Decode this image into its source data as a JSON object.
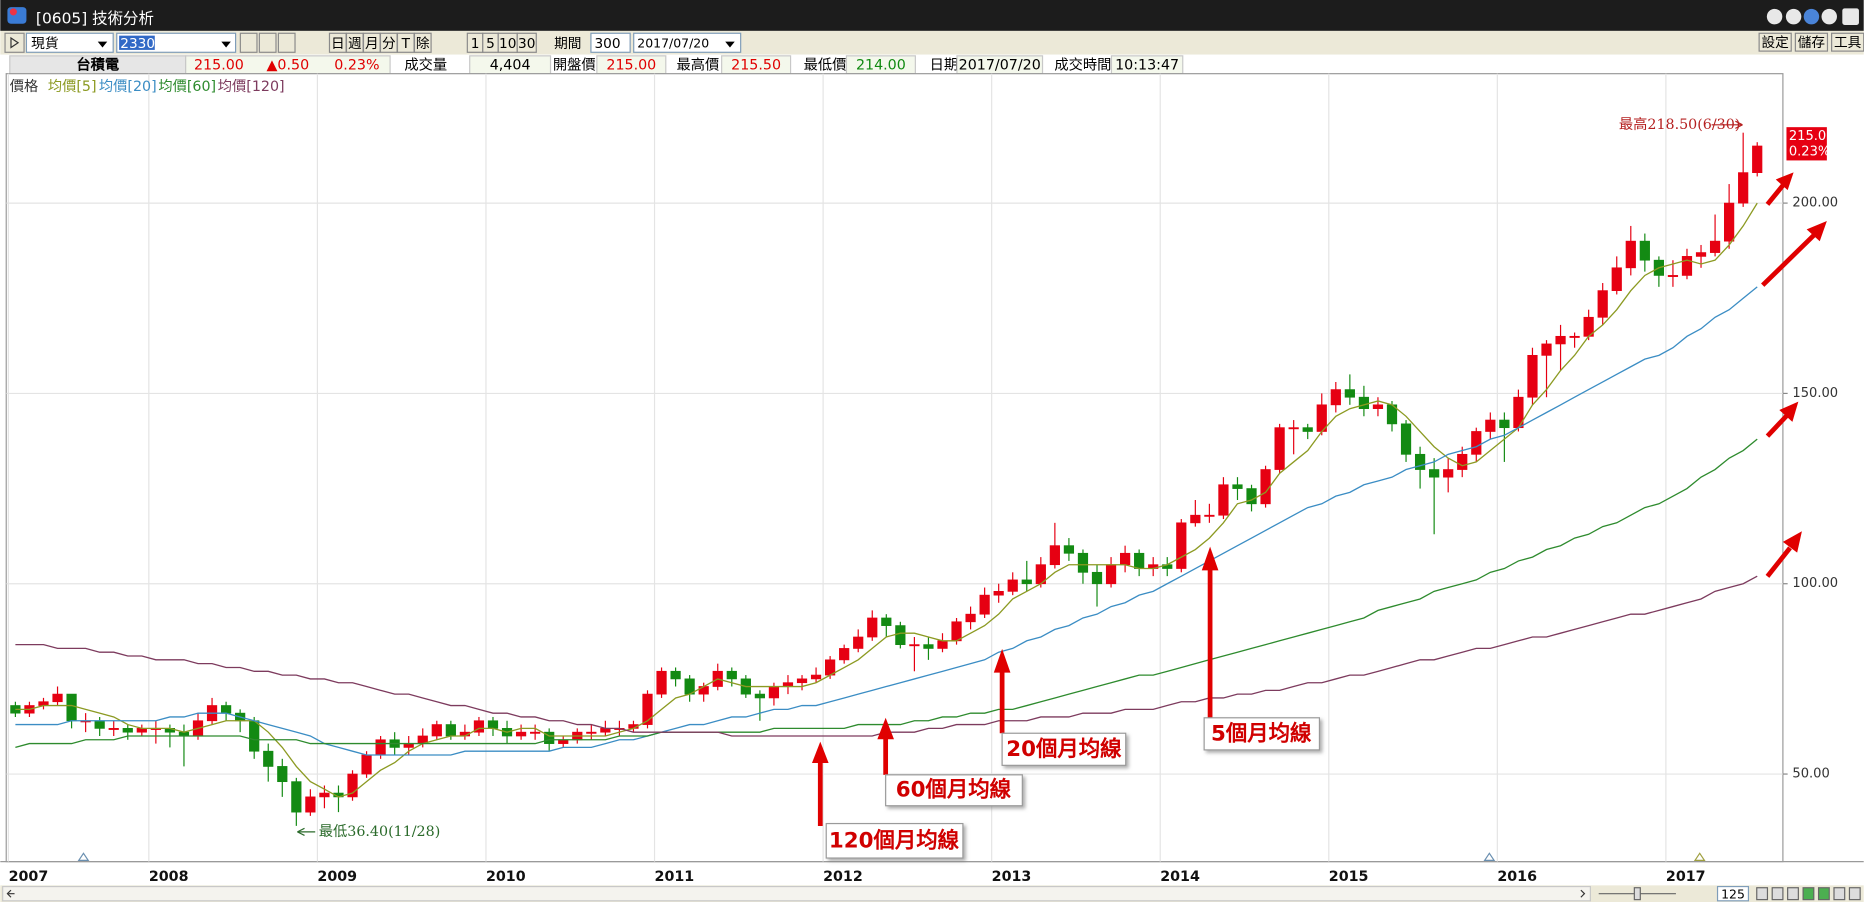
{
  "window": {
    "title": "[0605] 技術分析"
  },
  "toolbar": {
    "market": "現貨",
    "symbol": "2330",
    "periods": [
      "日",
      "週",
      "月",
      "分",
      "T",
      "除"
    ],
    "minutes": [
      "1",
      "5",
      "10",
      "30"
    ],
    "range_label": "期間",
    "range": "300",
    "date": "2017/07/20",
    "buttons": [
      "設定",
      "儲存",
      "工具"
    ]
  },
  "quote": {
    "name": "台積電",
    "price": "215.00",
    "change": "▲0.50",
    "change_pct": "0.23%",
    "fields": [
      {
        "label": "成交量",
        "value": "4,404"
      },
      {
        "label": "開盤價",
        "value": "215.00"
      },
      {
        "label": "最高價",
        "value": "215.50"
      },
      {
        "label": "最低價",
        "value": "214.00"
      },
      {
        "label": "日期",
        "value": "2017/07/20"
      },
      {
        "label": "成交時間",
        "value": "10:13:47"
      }
    ]
  },
  "chart_data": {
    "type": "candlestick",
    "price_label": "價格",
    "up_color": "#e60012",
    "down_color": "#138a13",
    "grid": true,
    "ylim": [
      27,
      234
    ],
    "yticks": [
      {
        "value": 50,
        "label": "50.00"
      },
      {
        "value": 100,
        "label": "100.00"
      },
      {
        "value": 150,
        "label": "150.00"
      },
      {
        "value": 200,
        "label": "200.00"
      }
    ],
    "categories": [
      "2007",
      null,
      null,
      null,
      null,
      null,
      null,
      null,
      null,
      null,
      "2008",
      null,
      null,
      null,
      null,
      null,
      null,
      null,
      null,
      null,
      null,
      null,
      "2009",
      null,
      null,
      null,
      null,
      null,
      null,
      null,
      null,
      null,
      null,
      null,
      "2010",
      null,
      null,
      null,
      null,
      null,
      null,
      null,
      null,
      null,
      null,
      null,
      "2011",
      null,
      null,
      null,
      null,
      null,
      null,
      null,
      null,
      null,
      null,
      null,
      "2012",
      null,
      null,
      null,
      null,
      null,
      null,
      null,
      null,
      null,
      null,
      null,
      "2013",
      null,
      null,
      null,
      null,
      null,
      null,
      null,
      null,
      null,
      null,
      null,
      "2014",
      null,
      null,
      null,
      null,
      null,
      null,
      null,
      null,
      null,
      null,
      null,
      "2015",
      null,
      null,
      null,
      null,
      null,
      null,
      null,
      null,
      null,
      null,
      null,
      "2016",
      null,
      null,
      null,
      null,
      null,
      null,
      null,
      null,
      null,
      null,
      null,
      "2017",
      null,
      null,
      null,
      null,
      null,
      null
    ],
    "open": [
      68,
      66,
      68,
      69,
      71,
      64,
      64,
      62,
      62,
      61,
      62,
      62,
      61,
      60,
      64,
      68,
      66,
      64,
      56,
      52,
      48,
      40,
      44,
      45,
      44,
      50,
      55,
      59,
      57,
      58,
      60,
      63,
      60,
      61,
      64,
      62,
      60,
      61,
      61,
      58,
      59,
      61,
      61,
      62,
      62,
      63,
      71,
      77,
      75,
      71,
      73,
      77,
      75,
      71,
      70,
      73,
      74,
      75,
      76,
      80,
      83,
      86,
      91,
      89,
      84,
      84,
      83,
      85,
      90,
      92,
      97,
      98,
      101,
      100,
      105,
      110,
      108,
      103,
      100,
      105,
      108,
      104,
      105,
      104,
      116,
      118,
      118,
      126,
      125,
      121,
      130,
      141,
      141,
      140,
      147,
      151,
      149,
      146,
      147,
      142,
      134,
      130,
      128,
      130,
      134,
      140,
      143,
      141,
      149,
      160,
      163,
      165,
      165,
      170,
      177,
      183,
      190,
      185,
      181,
      181,
      186,
      187,
      190,
      200,
      208
    ],
    "high": [
      69,
      69,
      70,
      73,
      71,
      66,
      65,
      64,
      63,
      63,
      64,
      63,
      63,
      66,
      70,
      69,
      67,
      65,
      58,
      54,
      49,
      46,
      47,
      47,
      51,
      56,
      60,
      61,
      60,
      62,
      64,
      64,
      63,
      65,
      65,
      64,
      63,
      63,
      62,
      60,
      62,
      63,
      64,
      64,
      64,
      72,
      78,
      78,
      76,
      74,
      79,
      78,
      76,
      72,
      74,
      76,
      76,
      78,
      81,
      84,
      88,
      93,
      92,
      90,
      86,
      86,
      87,
      91,
      94,
      99,
      100,
      103,
      106,
      107,
      116,
      112,
      109,
      105,
      107,
      110,
      109,
      107,
      107,
      117,
      122,
      121,
      128,
      128,
      126,
      131,
      142,
      143,
      142,
      150,
      153,
      155,
      152,
      149,
      148,
      143,
      136,
      133,
      133,
      136,
      141,
      145,
      145,
      151,
      162,
      164,
      168,
      166,
      172,
      179,
      186,
      194,
      192,
      186,
      185,
      188,
      189,
      197,
      205,
      218.5,
      216
    ],
    "low": [
      65,
      65,
      67,
      68,
      62,
      61,
      60,
      60,
      59,
      60,
      58,
      57,
      52,
      59,
      63,
      64,
      61,
      54,
      48,
      44,
      36.4,
      39,
      41,
      40,
      43,
      49,
      54,
      55,
      55,
      57,
      59,
      59,
      59,
      60,
      60,
      58,
      59,
      59,
      56,
      57,
      58,
      59,
      60,
      60,
      61,
      62,
      70,
      73,
      69,
      69,
      72,
      73,
      70,
      64,
      68,
      71,
      72,
      74,
      75,
      79,
      82,
      85,
      86,
      83,
      77,
      80,
      82,
      84,
      88,
      91,
      95,
      97,
      98,
      99,
      104,
      106,
      100,
      94,
      99,
      103,
      102,
      102,
      102,
      103,
      115,
      116,
      117,
      122,
      119,
      120,
      129,
      134,
      138,
      139,
      145,
      147,
      144,
      144,
      140,
      132,
      125,
      113,
      124,
      128,
      132,
      138,
      132,
      140,
      147,
      149,
      156,
      162,
      164,
      168,
      176,
      181,
      182,
      178,
      178,
      180,
      183,
      186,
      188,
      199,
      207
    ],
    "close": [
      66,
      68,
      69,
      71,
      64,
      64,
      62,
      62,
      61,
      62,
      62,
      61,
      60,
      64,
      68,
      66,
      64,
      56,
      52,
      48,
      40,
      44,
      45,
      44,
      50,
      55,
      59,
      57,
      58,
      60,
      63,
      60,
      61,
      64,
      62,
      60,
      61,
      61,
      58,
      59,
      61,
      61,
      62,
      62,
      63,
      71,
      77,
      75,
      71,
      73,
      77,
      75,
      71,
      70,
      73,
      74,
      75,
      76,
      80,
      83,
      86,
      91,
      89,
      84,
      84,
      83,
      85,
      90,
      92,
      97,
      98,
      101,
      100,
      105,
      110,
      108,
      103,
      100,
      105,
      108,
      104,
      105,
      104,
      116,
      118,
      118,
      126,
      125,
      121,
      130,
      141,
      141,
      140,
      147,
      151,
      149,
      146,
      147,
      142,
      134,
      130,
      128,
      130,
      134,
      140,
      143,
      141,
      149,
      160,
      163,
      165,
      165,
      170,
      177,
      183,
      190,
      185,
      181,
      181,
      186,
      187,
      190,
      200,
      208,
      215
    ],
    "series": [
      {
        "name": "均價[5]",
        "color": "#8c9a22",
        "values": [
          67,
          67,
          68,
          68,
          68,
          67,
          66,
          65,
          63,
          62,
          62,
          62,
          61,
          62,
          63,
          64,
          64,
          64,
          61,
          57,
          52,
          48,
          46,
          44,
          45,
          48,
          51,
          53,
          56,
          58,
          59,
          60,
          60,
          62,
          62,
          61,
          62,
          62,
          60,
          60,
          60,
          60,
          60,
          61,
          62,
          64,
          67,
          70,
          71,
          73,
          75,
          74,
          73,
          73,
          73,
          73,
          73,
          74,
          76,
          78,
          80,
          83,
          86,
          87,
          87,
          86,
          85,
          85,
          87,
          89,
          92,
          96,
          98,
          100,
          103,
          105,
          105,
          105,
          105,
          105,
          104,
          104,
          105,
          107,
          109,
          112,
          116,
          121,
          122,
          124,
          129,
          132,
          135,
          140,
          144,
          146,
          147,
          148,
          147,
          144,
          140,
          136,
          133,
          131,
          132,
          135,
          138,
          141,
          147,
          151,
          156,
          160,
          165,
          168,
          172,
          177,
          181,
          183,
          184,
          185,
          184,
          185,
          189,
          194,
          200
        ]
      },
      {
        "name": "均價[20]",
        "color": "#3b8dc4",
        "values": [
          63,
          63,
          63,
          63,
          64,
          64,
          64,
          64,
          64,
          64,
          64,
          65,
          65,
          66,
          66,
          66,
          65,
          64,
          63,
          62,
          61,
          60,
          58,
          57,
          56,
          55,
          55,
          55,
          55,
          55,
          55,
          55,
          56,
          56,
          56,
          56,
          56,
          56,
          56,
          57,
          57,
          57,
          58,
          59,
          59,
          60,
          61,
          62,
          63,
          63,
          64,
          65,
          65,
          66,
          67,
          67,
          68,
          68,
          69,
          70,
          71,
          72,
          73,
          74,
          75,
          76,
          77,
          78,
          79,
          80,
          82,
          83,
          85,
          86,
          88,
          89,
          91,
          92,
          94,
          95,
          97,
          98,
          100,
          102,
          104,
          106,
          108,
          110,
          112,
          114,
          116,
          118,
          120,
          121,
          123,
          124,
          126,
          127,
          128,
          130,
          131,
          132,
          134,
          135,
          136,
          138,
          139,
          141,
          143,
          145,
          147,
          149,
          151,
          153,
          155,
          157,
          159,
          160,
          162,
          165,
          167,
          170,
          172,
          175,
          178
        ]
      },
      {
        "name": "均價[60]",
        "color": "#2e8b2e",
        "values": [
          57,
          58,
          58,
          58,
          58,
          59,
          59,
          59,
          60,
          60,
          60,
          60,
          60,
          60,
          60,
          60,
          60,
          59,
          59,
          59,
          59,
          58,
          58,
          58,
          58,
          58,
          58,
          58,
          58,
          58,
          58,
          58,
          58,
          58,
          58,
          58,
          58,
          58,
          59,
          59,
          59,
          59,
          59,
          60,
          60,
          60,
          61,
          61,
          61,
          61,
          61,
          61,
          61,
          61,
          62,
          62,
          62,
          62,
          62,
          62,
          63,
          63,
          63,
          63,
          64,
          64,
          65,
          65,
          66,
          66,
          67,
          67,
          68,
          69,
          70,
          71,
          72,
          73,
          74,
          75,
          76,
          76,
          77,
          78,
          79,
          80,
          81,
          82,
          83,
          84,
          85,
          86,
          87,
          88,
          89,
          90,
          91,
          93,
          94,
          95,
          96,
          98,
          99,
          100,
          101,
          103,
          104,
          106,
          107,
          109,
          110,
          112,
          113,
          115,
          116,
          118,
          120,
          121,
          123,
          125,
          128,
          130,
          133,
          135,
          138
        ]
      },
      {
        "name": "均價[120]",
        "color": "#7d3b5e",
        "values": [
          84,
          84,
          84,
          83,
          83,
          83,
          82,
          82,
          81,
          81,
          80,
          80,
          80,
          79,
          79,
          78,
          78,
          77,
          77,
          76,
          76,
          75,
          75,
          74,
          74,
          73,
          72,
          71,
          71,
          70,
          69,
          68,
          68,
          67,
          66,
          66,
          65,
          65,
          64,
          64,
          63,
          63,
          62,
          62,
          61,
          61,
          61,
          61,
          61,
          61,
          61,
          60,
          60,
          60,
          60,
          60,
          60,
          60,
          60,
          60,
          60,
          60,
          61,
          61,
          61,
          62,
          62,
          63,
          63,
          63,
          64,
          64,
          64,
          65,
          65,
          65,
          66,
          66,
          66,
          67,
          67,
          67,
          68,
          69,
          69,
          70,
          70,
          71,
          71,
          72,
          72,
          73,
          74,
          74,
          75,
          76,
          76,
          77,
          78,
          79,
          80,
          80,
          81,
          82,
          83,
          83,
          84,
          85,
          86,
          86,
          87,
          88,
          89,
          90,
          91,
          92,
          92,
          93,
          94,
          95,
          96,
          98,
          99,
          100,
          102
        ]
      }
    ],
    "last_price": "215.00",
    "last_change": "0.23%",
    "annotations": [
      "最高218.50(6/30)",
      "最低36.40(11/28)",
      "20個月均線",
      "60個月均線",
      "120個月均線",
      "5個月均線"
    ]
  },
  "scrollbar": {
    "zoom": "125"
  }
}
